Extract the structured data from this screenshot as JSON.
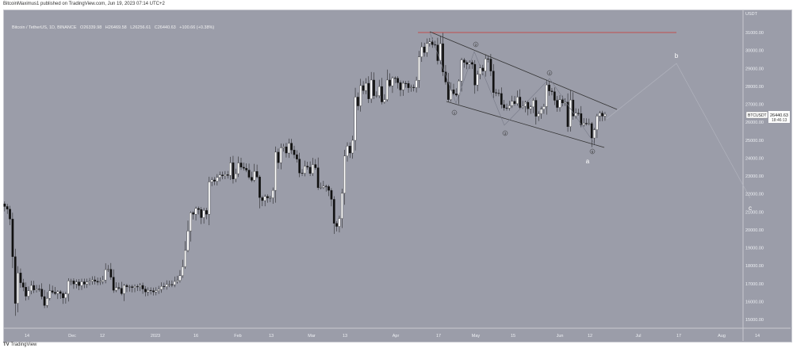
{
  "credit": "BitcoinMaximus1 published on TradingView.com, Jun 19, 2023 07:14 UTC+2",
  "legend": {
    "symbol": "Bitcoin / TetherUS, 1D, BINANCE",
    "o": "O26339.98",
    "h": "H26469.58",
    "l": "L26256.61",
    "c": "C26440.63",
    "change": "+100.66 (+0.38%)"
  },
  "footer": {
    "logo": "TradingView"
  },
  "price_axis": {
    "currency": "USDT",
    "ticks": [
      "31000.00",
      "30000.00",
      "29000.00",
      "28000.00",
      "27000.00",
      "26000.00",
      "25000.00",
      "24000.00",
      "23000.00",
      "22000.00",
      "21000.00",
      "20000.00",
      "19000.00",
      "18000.00",
      "17000.00",
      "16000.00",
      "15000.00"
    ]
  },
  "time_axis": {
    "ticks": [
      "14",
      "Dec",
      "12",
      "2023",
      "16",
      "Feb",
      "13",
      "Mar",
      "13",
      "Apr",
      "17",
      "May",
      "15",
      "Jun",
      "12",
      "Jul",
      "17",
      "Aug",
      "14"
    ]
  },
  "last_price": {
    "symbol": "BTCUSDT",
    "price": "26440.63",
    "countdown": "18:46:13"
  },
  "annotations": {
    "waves": [
      "1",
      "2",
      "3",
      "4",
      "5"
    ],
    "letters": [
      "a",
      "b",
      "c"
    ],
    "resistance": 31000
  },
  "colors": {
    "background": "#9b9da9",
    "up": "#ffffff",
    "down": "#111111",
    "resistance": "#c0504d"
  },
  "chart_data": {
    "type": "candlestick",
    "start_date": "2022-11-05",
    "interval": "1D",
    "ylim": [
      14600,
      31800
    ],
    "closes": [
      21300,
      21150,
      20600,
      18500,
      15900,
      17600,
      17050,
      16800,
      16300,
      16600,
      16900,
      16650,
      16700,
      16690,
      16280,
      15780,
      16180,
      16600,
      16520,
      16450,
      16550,
      16450,
      16200,
      16430,
      17150,
      17150,
      16980,
      17090,
      16890,
      17100,
      16970,
      17090,
      17130,
      17210,
      17130,
      17080,
      17120,
      17200,
      17780,
      17800,
      17360,
      16630,
      16780,
      16740,
      16440,
      16900,
      16820,
      16830,
      16780,
      16840,
      16830,
      16900,
      16700,
      16540,
      16630,
      16600,
      16540,
      16610,
      16680,
      16850,
      16830,
      16950,
      16950,
      16940,
      17120,
      17180,
      17440,
      17940,
      18850,
      19930,
      20950,
      20870,
      21190,
      21130,
      20680,
      21080,
      20870,
      22670,
      22780,
      22710,
      22920,
      23060,
      23010,
      23080,
      23030,
      23740,
      22830,
      23130,
      23730,
      23490,
      23430,
      23330,
      22930,
      22760,
      23260,
      22950,
      21800,
      21630,
      21860,
      21780,
      21780,
      22200,
      24330,
      23740,
      24570,
      24630,
      24280,
      24830,
      24450,
      24190,
      23940,
      23170,
      23150,
      23550,
      23490,
      23140,
      23640,
      23460,
      22350,
      22360,
      22430,
      22410,
      22200,
      21700,
      20360,
      20190,
      20630,
      22040,
      24120,
      24670,
      24280,
      24990,
      27400,
      26910,
      28040,
      27760,
      28170,
      27300,
      28350,
      27480,
      27480,
      27990,
      27130,
      27260,
      28350,
      28030,
      28460,
      28450,
      28200,
      27800,
      28170,
      28160,
      27920,
      27950,
      27930,
      28330,
      29640,
      30200,
      29880,
      30390,
      30480,
      30320,
      30300,
      29430,
      30380,
      28800,
      28240,
      27260,
      27810,
      27590,
      27510,
      28300,
      29470,
      29330,
      29230,
      29330,
      29230,
      28070,
      28670,
      29020,
      28850,
      29530,
      29520,
      28850,
      27650,
      27620,
      27600,
      26980,
      26800,
      26780,
      26920,
      27170,
      27030,
      27400,
      26820,
      26890,
      27110,
      26750,
      26850,
      27220,
      26330,
      26470,
      26720,
      26870,
      28080,
      27740,
      27700,
      27220,
      26820,
      27250,
      27070,
      27120,
      25750,
      27240,
      26340,
      26500,
      26480,
      25850,
      25940,
      25910,
      25920,
      25120,
      25580,
      26340,
      26510,
      26340,
      26440.63
    ]
  }
}
